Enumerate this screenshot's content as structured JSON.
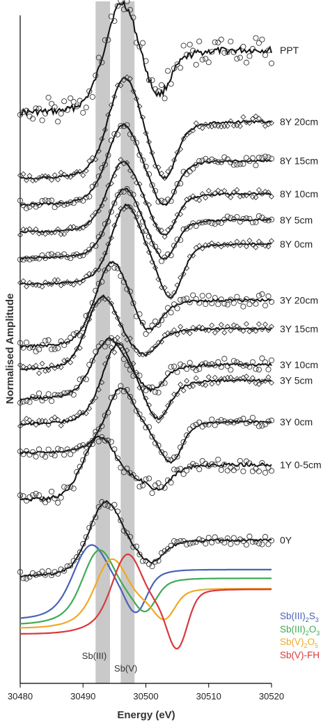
{
  "chart_data": {
    "type": "scatter",
    "title": "",
    "xlabel": "Energy (eV)",
    "ylabel": "Normalised Amplitude",
    "xlim": [
      30480,
      30520
    ],
    "x_ticks": [
      30480,
      30490,
      30500,
      30510,
      30520
    ],
    "grid": false,
    "highlight_bands": [
      {
        "label": "Sb(III)",
        "x_range": [
          30492,
          30494.3
        ]
      },
      {
        "label": "Sb(V)",
        "x_range": [
          30496,
          30498.2
        ]
      }
    ],
    "series": [
      {
        "name": "PPT",
        "marker": "circle",
        "baseline": 0.155,
        "amp": 0.11,
        "noise": 0.022,
        "peak_center": 30496,
        "peak_width": 3.4,
        "pre_rise_center": 30493,
        "dip_center": 30502,
        "dip_depth": 0.35,
        "plateau": 0.55
      },
      {
        "name": "8Y 20cm",
        "marker": "diamond",
        "baseline": 0.246,
        "amp": 0.1,
        "noise": 0.008,
        "peak_center": 30496.5,
        "peak_width": 3.2,
        "pre_rise_center": 30493,
        "dip_center": 30503,
        "dip_depth": 0.55,
        "plateau": 0.55
      },
      {
        "name": "8Y 15cm",
        "marker": "circle",
        "baseline": 0.282,
        "amp": 0.08,
        "noise": 0.007,
        "peak_center": 30496.3,
        "peak_width": 3.2,
        "pre_rise_center": 30493,
        "dip_center": 30503,
        "dip_depth": 0.55,
        "plateau": 0.5
      },
      {
        "name": "8Y 10cm",
        "marker": "diamond",
        "baseline": 0.32,
        "amp": 0.07,
        "noise": 0.007,
        "peak_center": 30496.3,
        "peak_width": 3.2,
        "pre_rise_center": 30493,
        "dip_center": 30503,
        "dip_depth": 0.6,
        "plateau": 0.5
      },
      {
        "name": "8Y 5cm",
        "marker": "circle",
        "baseline": 0.356,
        "amp": 0.07,
        "noise": 0.006,
        "peak_center": 30496.5,
        "peak_width": 3.1,
        "pre_rise_center": 30493.5,
        "dip_center": 30503,
        "dip_depth": 0.55,
        "plateau": 0.5
      },
      {
        "name": "8Y 0cm",
        "marker": "diamond",
        "baseline": 0.392,
        "amp": 0.08,
        "noise": 0.006,
        "peak_center": 30496.8,
        "peak_width": 3.0,
        "pre_rise_center": 30493.8,
        "dip_center": 30504,
        "dip_depth": 0.75,
        "plateau": 0.4
      },
      {
        "name": "3Y 20cm",
        "marker": "circle",
        "baseline": 0.478,
        "amp": 0.085,
        "noise": 0.009,
        "peak_center": 30494.5,
        "peak_width": 3.4,
        "pre_rise_center": 30491.5,
        "dip_center": 30500.5,
        "dip_depth": 0.3,
        "plateau": 0.5
      },
      {
        "name": "3Y 15cm",
        "marker": "diamond",
        "baseline": 0.51,
        "amp": 0.075,
        "noise": 0.008,
        "peak_center": 30493,
        "peak_width": 3.2,
        "pre_rise_center": 30490.5,
        "dip_center": 30500,
        "dip_depth": 0.25,
        "plateau": 0.5
      },
      {
        "name": "3Y 10cm",
        "marker": "circle",
        "baseline": 0.55,
        "amp": 0.06,
        "noise": 0.01,
        "peak_center": 30494,
        "peak_width": 3.4,
        "pre_rise_center": 30491,
        "dip_center": 30501,
        "dip_depth": 0.35,
        "plateau": 0.55
      },
      {
        "name": "3Y 5cm",
        "marker": "diamond",
        "baseline": 0.585,
        "amp": 0.08,
        "noise": 0.009,
        "peak_center": 30495.5,
        "peak_width": 3.2,
        "pre_rise_center": 30492,
        "dip_center": 30502,
        "dip_depth": 0.45,
        "plateau": 0.5
      },
      {
        "name": "3Y 0cm",
        "marker": "circle",
        "baseline": 0.625,
        "amp": 0.065,
        "noise": 0.007,
        "peak_center": 30496,
        "peak_width": 3.0,
        "pre_rise_center": 30492.5,
        "dip_center": 30504,
        "dip_depth": 0.7,
        "plateau": 0.35
      },
      {
        "name": "1Y 0-5cm",
        "marker": "circle",
        "baseline": 0.69,
        "amp": 0.065,
        "noise": 0.012,
        "peak_center": 30492.5,
        "peak_width": 3.4,
        "pre_rise_center": 30490,
        "dip_center": 30502,
        "dip_depth": 0.3,
        "plateau": 0.5
      },
      {
        "name": "0Y",
        "marker": "circle",
        "baseline": 0.795,
        "amp": 0.075,
        "noise": 0.007,
        "peak_center": 30493.5,
        "peak_width": 3.4,
        "pre_rise_center": 30490.5,
        "dip_center": 30501,
        "dip_depth": 0.25,
        "plateau": 0.35
      }
    ],
    "reference_spectra": [
      {
        "name": "Sb(III)2S3",
        "name_parts": [
          "Sb(III)",
          "2",
          "S",
          "3"
        ],
        "color": "#4a62b6",
        "baseline": 0.855,
        "amp": 0.07,
        "peak_center": 30491.2,
        "peak_width": 3.6,
        "dip_center": 30498.5,
        "dip_depth": 0.55,
        "plateau": 0.48
      },
      {
        "name": "Sb(III)2O3",
        "name_parts": [
          "Sb(III)",
          "2",
          "O",
          "3"
        ],
        "color": "#3faa55",
        "baseline": 0.862,
        "amp": 0.07,
        "peak_center": 30492.5,
        "peak_width": 3.3,
        "dip_center": 30500,
        "dip_depth": 0.4,
        "plateau": 0.4
      },
      {
        "name": "Sb(V)2O5",
        "name_parts": [
          "Sb(V)",
          "2",
          "O",
          "5"
        ],
        "color": "#f0a924",
        "baseline": 0.867,
        "amp": 0.065,
        "peak_center": 30494.5,
        "peak_width": 3.3,
        "dip_center": 30503,
        "dip_depth": 0.45,
        "plateau": 0.32
      },
      {
        "name": "Sb(V)-FH",
        "name_parts": [
          "Sb(V)-FH",
          "",
          "",
          ""
        ],
        "color": "#d8393a",
        "baseline": 0.875,
        "amp": 0.075,
        "peak_center": 30497,
        "peak_width": 3.1,
        "dip_center": 30505,
        "dip_depth": 0.9,
        "plateau": 0.3
      }
    ]
  }
}
